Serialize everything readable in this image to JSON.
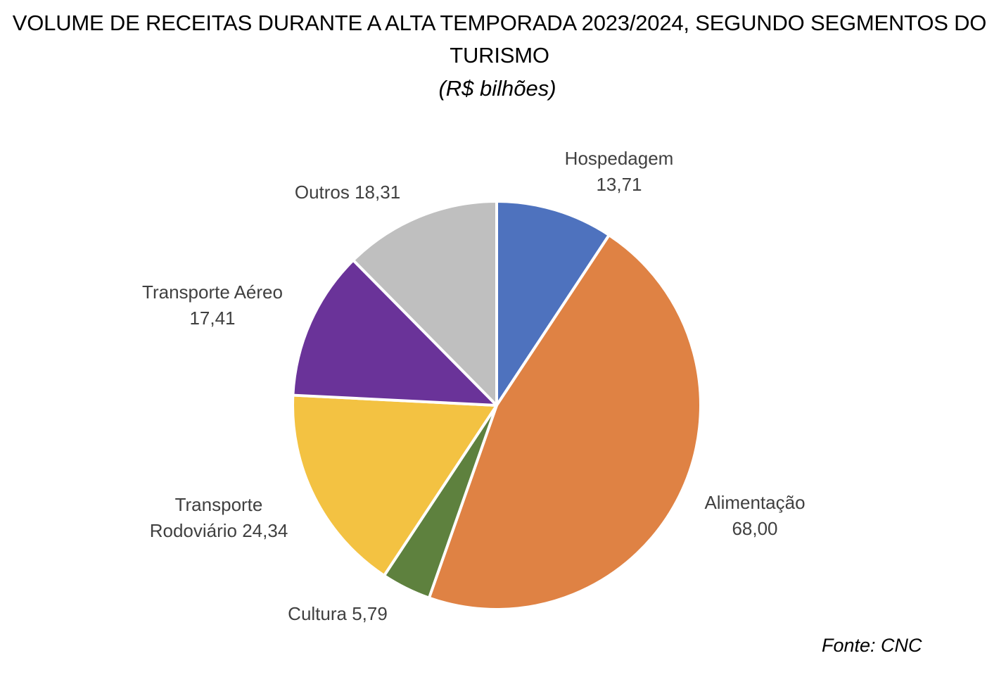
{
  "title": "VOLUME DE RECEITAS DURANTE A ALTA TEMPORADA 2023/2024, SEGUNDO SEGMENTOS DO TURISMO",
  "subtitle": "(R$ bilhões)",
  "source": "Fonte: CNC",
  "chart_data": {
    "type": "pie",
    "title": "VOLUME DE RECEITAS DURANTE A ALTA TEMPORADA 2023/2024, SEGUNDO SEGMENTOS DO TURISMO",
    "subtitle": "(R$ bilhões)",
    "slices": [
      {
        "name": "Hospedagem",
        "value": 13.71,
        "label_lines": [
          "Hospedagem",
          "13,71"
        ],
        "color": "#4E72BE"
      },
      {
        "name": "Alimentação",
        "value": 68.0,
        "label_lines": [
          "Alimentação",
          "68,00"
        ],
        "color": "#DF8244"
      },
      {
        "name": "Cultura",
        "value": 5.79,
        "label_lines": [
          "Cultura 5,79"
        ],
        "color": "#5E813E"
      },
      {
        "name": "Transporte Rodoviário",
        "value": 24.34,
        "label_lines": [
          "Transporte",
          "Rodoviário 24,34"
        ],
        "color": "#F3C242"
      },
      {
        "name": "Transporte Aéreo",
        "value": 17.41,
        "label_lines": [
          "Transporte Aéreo",
          "17,41"
        ],
        "color": "#6A3399"
      },
      {
        "name": "Outros",
        "value": 18.31,
        "label_lines": [
          "Outros 18,31"
        ],
        "color": "#BFBFBF"
      }
    ],
    "start_angle_deg": 0,
    "direction": "clockwise",
    "legend": "none"
  }
}
